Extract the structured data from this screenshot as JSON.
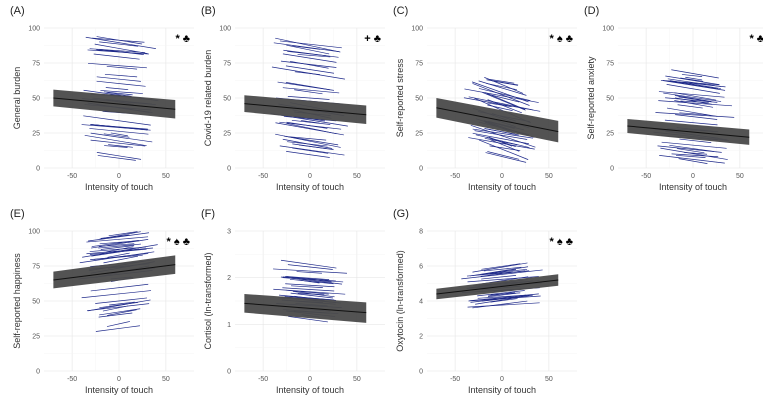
{
  "figure": {
    "background": "#ffffff",
    "line_color": "#1f2a8a",
    "band_color": "#4a4a4a"
  },
  "chart_data": [
    {
      "id": "A",
      "type": "line",
      "label": "(A)",
      "ylabel": "General burden",
      "xlabel": "Intensity of touch",
      "xlim": [
        -80,
        80
      ],
      "ylim": [
        0,
        100
      ],
      "xticks": [
        -50,
        0,
        50
      ],
      "yticks": [
        0,
        25,
        50,
        75,
        100
      ],
      "fit": {
        "x": [
          -70,
          60
        ],
        "y": [
          50,
          42
        ]
      },
      "band_halfwidth": 6,
      "observation_lines": {
        "y_range": [
          6,
          92
        ],
        "count": 45,
        "slope": -0.08
      },
      "significance": "* ♣"
    },
    {
      "id": "B",
      "type": "line",
      "label": "(B)",
      "ylabel": "Covid-19 related burden",
      "xlabel": "Intensity of touch",
      "xlim": [
        -80,
        80
      ],
      "ylim": [
        0,
        100
      ],
      "xticks": [
        -50,
        0,
        50
      ],
      "yticks": [
        0,
        25,
        50,
        75,
        100
      ],
      "fit": {
        "x": [
          -70,
          60
        ],
        "y": [
          46,
          38
        ]
      },
      "band_halfwidth": 6,
      "observation_lines": {
        "y_range": [
          6,
          90
        ],
        "count": 45,
        "slope": -0.1
      },
      "significance": "+ ♣"
    },
    {
      "id": "C",
      "type": "line",
      "label": "(C)",
      "ylabel": "Self-reported stress",
      "xlabel": "Intensity of touch",
      "xlim": [
        -80,
        80
      ],
      "ylim": [
        0,
        100
      ],
      "xticks": [
        -50,
        0,
        50
      ],
      "yticks": [
        0,
        25,
        50,
        75,
        100
      ],
      "fit": {
        "x": [
          -70,
          60
        ],
        "y": [
          43,
          26
        ]
      },
      "band_halfwidth": 7,
      "observation_lines": {
        "y_range": [
          8,
          62
        ],
        "count": 45,
        "slope": -0.2
      },
      "significance": "* ♠ ♣"
    },
    {
      "id": "D",
      "type": "line",
      "label": "(D)",
      "ylabel": "Self-reported anxiety",
      "xlabel": "Intensity of touch",
      "xlim": [
        -80,
        80
      ],
      "ylim": [
        0,
        100
      ],
      "xticks": [
        -50,
        0,
        50
      ],
      "yticks": [
        0,
        25,
        50,
        75,
        100
      ],
      "fit": {
        "x": [
          -70,
          60
        ],
        "y": [
          30,
          22
        ]
      },
      "band_halfwidth": 5,
      "observation_lines": {
        "y_range": [
          2,
          68
        ],
        "count": 45,
        "slope": -0.08
      },
      "significance": "* ♣"
    },
    {
      "id": "E",
      "type": "line",
      "label": "(E)",
      "ylabel": "Self-reported happiness",
      "xlabel": "Intensity of touch",
      "xlim": [
        -80,
        80
      ],
      "ylim": [
        0,
        100
      ],
      "xticks": [
        -50,
        0,
        50
      ],
      "yticks": [
        0,
        25,
        50,
        75,
        100
      ],
      "fit": {
        "x": [
          -70,
          60
        ],
        "y": [
          65,
          76
        ]
      },
      "band_halfwidth": 6,
      "observation_lines": {
        "y_range": [
          30,
          100
        ],
        "count": 45,
        "slope": 0.1
      },
      "significance": "* ♠ ♣"
    },
    {
      "id": "F",
      "type": "line",
      "label": "(F)",
      "ylabel": "Cortisol (ln-transformed)",
      "xlabel": "Intensity of touch",
      "xlim": [
        -80,
        80
      ],
      "ylim": [
        0,
        3
      ],
      "xticks": [
        -50,
        0,
        50
      ],
      "yticks": [
        0,
        1,
        2,
        3
      ],
      "fit": {
        "x": [
          -70,
          60
        ],
        "y": [
          1.45,
          1.25
        ]
      },
      "band_halfwidth": 0.2,
      "observation_lines": {
        "y_range": [
          1.05,
          2.3
        ],
        "count": 35,
        "slope": -0.002
      },
      "significance": ""
    },
    {
      "id": "G",
      "type": "line",
      "label": "(G)",
      "ylabel": "Oxytocin (ln-transformed)",
      "xlabel": "Intensity of touch",
      "xlim": [
        -80,
        80
      ],
      "ylim": [
        0,
        8
      ],
      "xticks": [
        -50,
        0,
        50
      ],
      "yticks": [
        0,
        2,
        4,
        6,
        8
      ],
      "fit": {
        "x": [
          -70,
          60
        ],
        "y": [
          4.4,
          5.2
        ]
      },
      "band_halfwidth": 0.3,
      "observation_lines": {
        "y_range": [
          3.7,
          6.1
        ],
        "count": 35,
        "slope": 0.006
      },
      "significance": "* ♠ ♣"
    }
  ]
}
